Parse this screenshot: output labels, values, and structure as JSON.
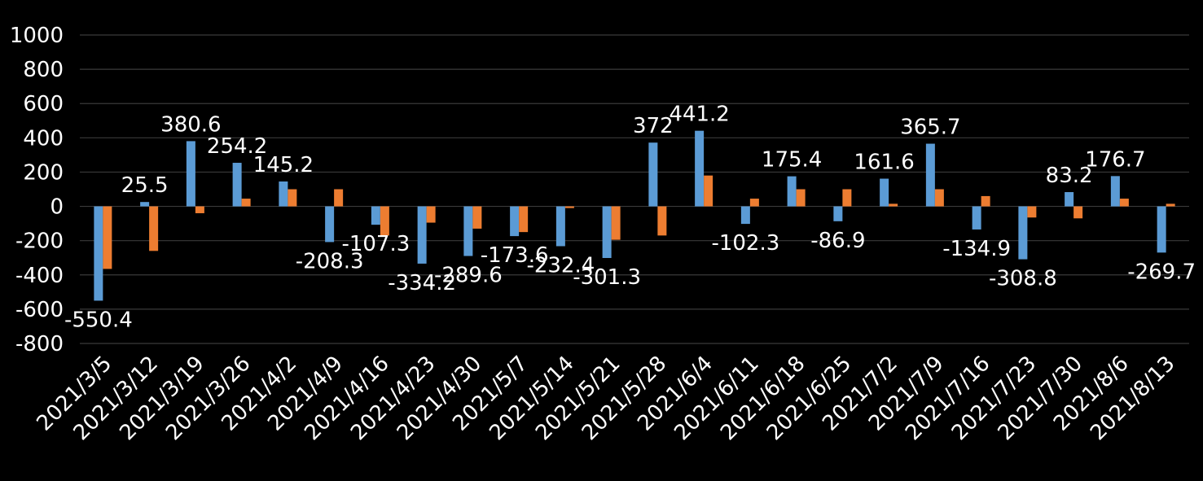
{
  "chart_data": {
    "type": "bar",
    "categories": [
      "2021/3/5",
      "2021/3/12",
      "2021/3/19",
      "2021/3/26",
      "2021/4/2",
      "2021/4/9",
      "2021/4/16",
      "2021/4/23",
      "2021/4/30",
      "2021/5/7",
      "2021/5/14",
      "2021/5/21",
      "2021/5/28",
      "2021/6/4",
      "2021/6/11",
      "2021/6/18",
      "2021/6/25",
      "2021/7/2",
      "2021/7/9",
      "2021/7/16",
      "2021/7/23",
      "2021/7/30",
      "2021/8/6",
      "2021/8/13"
    ],
    "series": [
      {
        "name": "blue",
        "color": "#5B9BD5",
        "values": [
          -550.4,
          25.5,
          380.6,
          254.2,
          145.2,
          -208.3,
          -107.3,
          -334.2,
          -289.6,
          -173.6,
          -232.4,
          -301.3,
          372,
          441.2,
          -102.3,
          175.4,
          -86.9,
          161.6,
          365.7,
          -134.9,
          -308.8,
          83.2,
          176.7,
          -269.7
        ],
        "labels": [
          "-550.4",
          "25.5",
          "380.6",
          "254.2",
          "145.2",
          "-208.3",
          "-107.3",
          "-334.2",
          "-289.6",
          "-173.6",
          "-232.4",
          "-301.3",
          "372",
          "441.2",
          "-102.3",
          "175.4",
          "-86.9",
          "161.6",
          "365.7",
          "-134.9",
          "-308.8",
          "83.2",
          "176.7",
          "-269.7"
        ]
      },
      {
        "name": "orange",
        "color": "#ED7D31",
        "values": [
          -365,
          -260,
          -40,
          45,
          100,
          100,
          -170,
          -95,
          -130,
          -150,
          -10,
          -195,
          -170,
          180,
          45,
          100,
          100,
          15,
          100,
          60,
          -65,
          -70,
          45,
          15
        ]
      }
    ],
    "yticks": [
      "1000",
      "800",
      "600",
      "400",
      "200",
      "0",
      "-200",
      "-400",
      "-600",
      "-800"
    ],
    "ylim": [
      -800,
      1000
    ],
    "title": "",
    "xlabel": "",
    "ylabel": ""
  }
}
